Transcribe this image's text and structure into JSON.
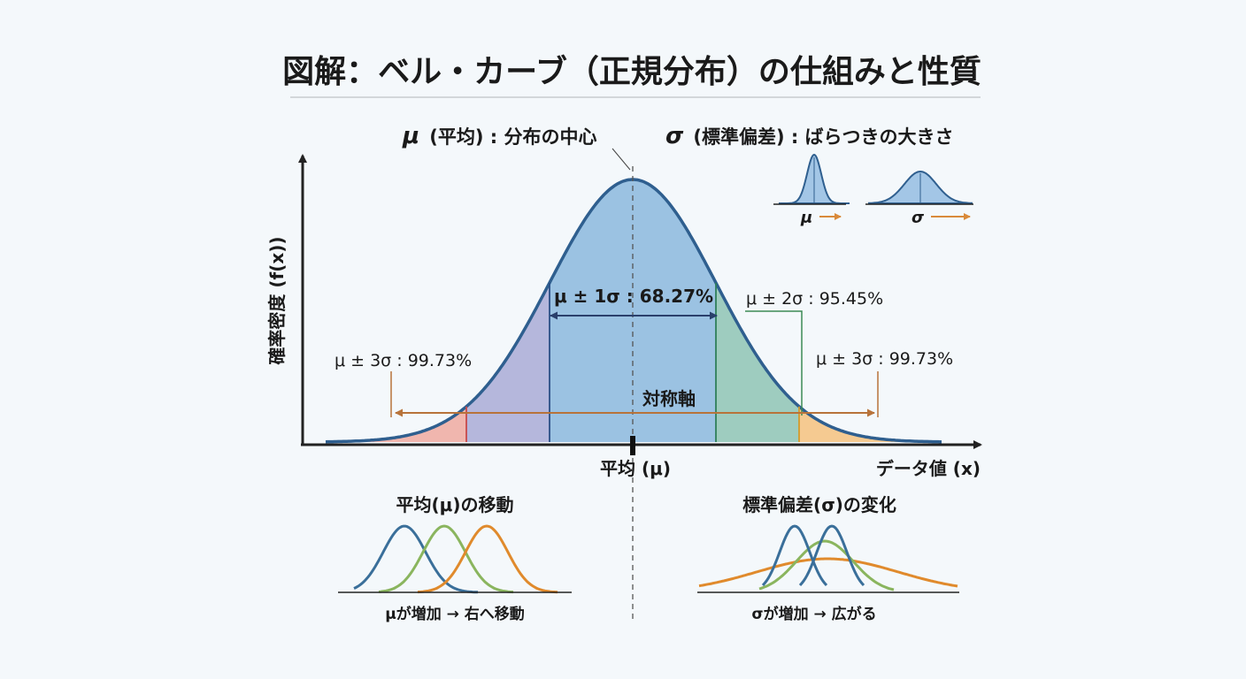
{
  "title": "図解：ベル・カーブ（正規分布）の仕組みと性質",
  "header": {
    "mu_symbol": "μ",
    "mu_text": "(平均) : 分布の中心",
    "sigma_symbol": "σ",
    "sigma_text": "(標準偏差) : ばらつきの大きさ"
  },
  "inset": {
    "mu_label": "μ",
    "sigma_label": "σ"
  },
  "axes": {
    "ylabel": "確率密度 (f(x))",
    "xlabel": "データ値 (x)",
    "center_label": "平均 (μ)"
  },
  "annotations": {
    "one_sigma": "μ ± 1σ : 68.27%",
    "two_sigma": "μ ± 2σ : 95.45%",
    "three_sigma_left": "μ ± 3σ : 99.73%",
    "three_sigma_right": "μ ± 3σ : 99.73%",
    "symmetry": "対称軸"
  },
  "bottom": {
    "left_title": "平均(μ)の移動",
    "left_caption": "μが増加 → 右へ移動",
    "right_title": "標準偏差(σ)の変化",
    "right_caption": "σが増加 → 広がる"
  },
  "colors": {
    "curve": "#2f5f8f",
    "one_sigma_fill": "#8bb8dd",
    "left_two_sigma_fill": "#a9acd6",
    "right_two_sigma_fill": "#8ec4b4",
    "left_three_sigma_fill": "#eeaaa0",
    "right_three_sigma_fill": "#f4c27e",
    "orange_arrow": "#b8733a",
    "blue_curve": "#3a6f9a",
    "green_curve": "#8ab55e",
    "orange_curve": "#e08a2c"
  }
}
